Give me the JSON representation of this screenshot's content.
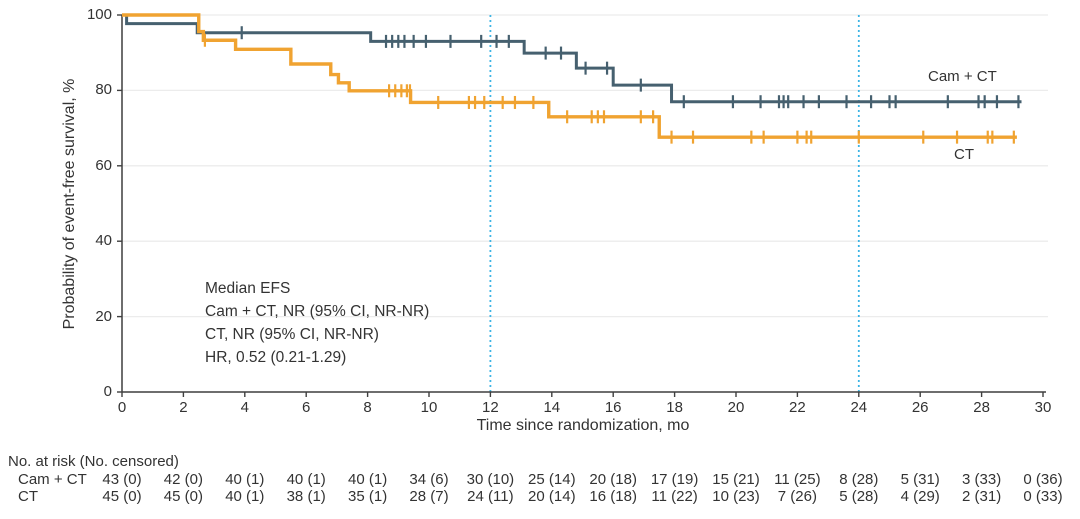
{
  "figure": {
    "curve_labels": {
      "cam_ct": "Cam + CT",
      "ct": "CT"
    },
    "annotation": {
      "line1": "Median EFS",
      "line2": "Cam + CT, NR (95% CI, NR-NR)",
      "line3": "CT, NR (95% CI, NR-NR)",
      "line4": "HR, 0.52 (0.21-1.29)"
    }
  },
  "chart_data": {
    "type": "line",
    "subtype": "kaplan_meier_step",
    "title": "",
    "x_axis": {
      "label": "Time since randomization, mo",
      "range": [
        0,
        30
      ],
      "ticks": [
        0,
        2,
        4,
        6,
        8,
        10,
        12,
        14,
        16,
        18,
        20,
        22,
        24,
        26,
        28,
        30
      ]
    },
    "y_axis": {
      "label": "Probability of event-free survival, %",
      "range": [
        0,
        100
      ],
      "ticks": [
        0,
        20,
        40,
        60,
        80,
        100
      ]
    },
    "grid": "horizontal",
    "reference_lines_x": [
      12,
      24
    ],
    "legend_position": "inline-right",
    "series": [
      {
        "name": "Cam + CT",
        "color": "#46606F",
        "line_width": 3,
        "points": [
          [
            0,
            100
          ],
          [
            0.15,
            100
          ],
          [
            0.15,
            97.7
          ],
          [
            2.45,
            97.7
          ],
          [
            2.45,
            95.3
          ],
          [
            8.1,
            95.3
          ],
          [
            8.1,
            93.0
          ],
          [
            13.1,
            93.0
          ],
          [
            13.1,
            89.9
          ],
          [
            14.8,
            89.9
          ],
          [
            14.8,
            85.9
          ],
          [
            16.0,
            85.9
          ],
          [
            16.0,
            81.4
          ],
          [
            17.9,
            81.4
          ],
          [
            17.9,
            77.0
          ],
          [
            29.3,
            77.0
          ]
        ],
        "censor_marks": [
          [
            3.9,
            95.3
          ],
          [
            8.6,
            93.0
          ],
          [
            8.8,
            93.0
          ],
          [
            9.0,
            93.0
          ],
          [
            9.2,
            93.0
          ],
          [
            9.5,
            93.0
          ],
          [
            9.9,
            93.0
          ],
          [
            10.7,
            93.0
          ],
          [
            11.7,
            93.0
          ],
          [
            12.2,
            93.0
          ],
          [
            12.6,
            93.0
          ],
          [
            13.8,
            89.9
          ],
          [
            14.3,
            89.9
          ],
          [
            15.1,
            85.9
          ],
          [
            15.8,
            85.9
          ],
          [
            16.9,
            81.4
          ],
          [
            18.3,
            77.0
          ],
          [
            19.9,
            77.0
          ],
          [
            20.8,
            77.0
          ],
          [
            21.4,
            77.0
          ],
          [
            21.55,
            77.0
          ],
          [
            21.7,
            77.0
          ],
          [
            22.2,
            77.0
          ],
          [
            22.7,
            77.0
          ],
          [
            23.6,
            77.0
          ],
          [
            24.4,
            77.0
          ],
          [
            25.0,
            77.0
          ],
          [
            25.2,
            77.0
          ],
          [
            26.9,
            77.0
          ],
          [
            27.9,
            77.0
          ],
          [
            28.1,
            77.0
          ],
          [
            28.5,
            77.0
          ],
          [
            29.2,
            77.0
          ]
        ]
      },
      {
        "name": "CT",
        "color": "#F0A331",
        "line_width": 3.4,
        "points": [
          [
            0,
            100
          ],
          [
            2.5,
            100
          ],
          [
            2.5,
            95.6
          ],
          [
            2.65,
            95.6
          ],
          [
            2.65,
            93.3
          ],
          [
            3.7,
            93.3
          ],
          [
            3.7,
            90.9
          ],
          [
            5.5,
            90.9
          ],
          [
            5.5,
            87.0
          ],
          [
            6.8,
            87.0
          ],
          [
            6.8,
            84.2
          ],
          [
            7.05,
            84.2
          ],
          [
            7.05,
            82.0
          ],
          [
            7.4,
            82.0
          ],
          [
            7.4,
            79.9
          ],
          [
            9.4,
            79.9
          ],
          [
            9.4,
            76.8
          ],
          [
            13.9,
            76.8
          ],
          [
            13.9,
            73.0
          ],
          [
            17.5,
            73.0
          ],
          [
            17.5,
            67.6
          ],
          [
            29.15,
            67.6
          ]
        ],
        "censor_marks": [
          [
            2.7,
            93.3
          ],
          [
            8.7,
            79.9
          ],
          [
            8.9,
            79.9
          ],
          [
            9.1,
            79.9
          ],
          [
            9.28,
            79.9
          ],
          [
            9.38,
            79.9
          ],
          [
            10.3,
            76.8
          ],
          [
            11.3,
            76.8
          ],
          [
            11.5,
            76.8
          ],
          [
            11.8,
            76.8
          ],
          [
            12.4,
            76.8
          ],
          [
            12.8,
            76.8
          ],
          [
            13.4,
            76.8
          ],
          [
            14.5,
            73.0
          ],
          [
            15.3,
            73.0
          ],
          [
            15.5,
            73.0
          ],
          [
            15.7,
            73.0
          ],
          [
            16.9,
            73.0
          ],
          [
            17.3,
            73.0
          ],
          [
            17.9,
            67.6
          ],
          [
            18.6,
            67.6
          ],
          [
            20.5,
            67.6
          ],
          [
            20.9,
            67.6
          ],
          [
            22.0,
            67.6
          ],
          [
            22.3,
            67.6
          ],
          [
            22.45,
            67.6
          ],
          [
            24.0,
            67.6
          ],
          [
            26.1,
            67.6
          ],
          [
            27.2,
            67.6
          ],
          [
            28.2,
            67.6
          ],
          [
            28.35,
            67.6
          ],
          [
            29.05,
            67.6
          ]
        ]
      }
    ]
  },
  "risk_table": {
    "title": "No. at risk (No. censored)",
    "time_points": [
      0,
      2,
      4,
      6,
      8,
      10,
      12,
      14,
      16,
      18,
      20,
      22,
      24,
      26,
      28,
      30
    ],
    "rows": [
      {
        "label": "Cam + CT",
        "values": [
          "43 (0)",
          "42 (0)",
          "40 (1)",
          "40 (1)",
          "40 (1)",
          "34 (6)",
          "30 (10)",
          "25 (14)",
          "20 (18)",
          "17 (19)",
          "15 (21)",
          "11 (25)",
          "8 (28)",
          "5 (31)",
          "3 (33)",
          "0 (36)"
        ]
      },
      {
        "label": "CT",
        "values": [
          "45 (0)",
          "45 (0)",
          "40 (1)",
          "38 (1)",
          "35 (1)",
          "28 (7)",
          "24 (11)",
          "20 (14)",
          "16 (18)",
          "11 (22)",
          "10 (23)",
          "7 (26)",
          "5 (28)",
          "4 (29)",
          "2 (31)",
          "0 (33)"
        ]
      }
    ]
  },
  "colors": {
    "cam_ct_line": "#46606F",
    "ct_line": "#F0A331",
    "reference_line": "#3CB4E5",
    "gridline": "#ECECEC",
    "axis": "#3F3F3F",
    "text": "#333333"
  }
}
